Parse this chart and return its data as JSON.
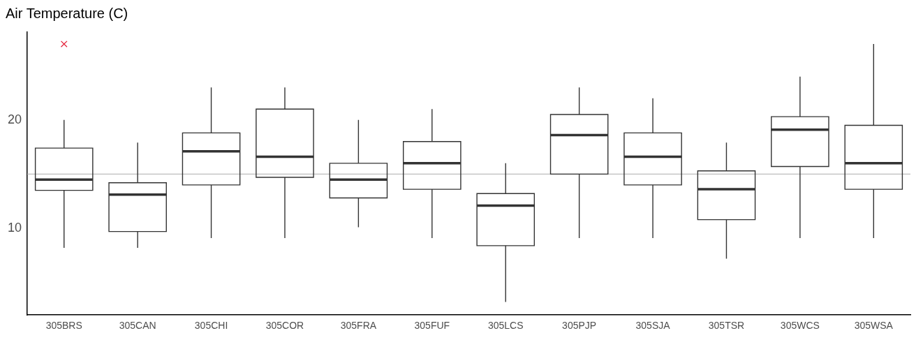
{
  "chart_data": {
    "type": "box",
    "title": "Air Temperature (C)",
    "categories": [
      "305BRS",
      "305CAN",
      "305CHI",
      "305COR",
      "305FRA",
      "305FUF",
      "305LCS",
      "305PJP",
      "305SJA",
      "305TSR",
      "305WCS",
      "305WSA"
    ],
    "series": [
      {
        "color": "#333333",
        "boxes": [
          {
            "low": 8.2,
            "q1": 13.5,
            "median": 14.5,
            "q3": 17.4,
            "high": 20
          },
          {
            "low": 8.2,
            "q1": 9.7,
            "median": 13.1,
            "q3": 14.2,
            "high": 17.9
          },
          {
            "low": 9.1,
            "q1": 14,
            "median": 17.1,
            "q3": 18.8,
            "high": 23
          },
          {
            "low": 9.1,
            "q1": 14.7,
            "median": 16.6,
            "q3": 21,
            "high": 23
          },
          {
            "low": 10.1,
            "q1": 12.8,
            "median": 14.5,
            "q3": 16,
            "high": 20
          },
          {
            "low": 9.1,
            "q1": 13.6,
            "median": 16,
            "q3": 18,
            "high": 21
          },
          {
            "low": 3.2,
            "q1": 8.4,
            "median": 12.1,
            "q3": 13.2,
            "high": 16
          },
          {
            "low": 9.1,
            "q1": 15,
            "median": 18.6,
            "q3": 20.5,
            "high": 23
          },
          {
            "low": 9.1,
            "q1": 14,
            "median": 16.6,
            "q3": 18.8,
            "high": 22
          },
          {
            "low": 7.2,
            "q1": 10.8,
            "median": 13.6,
            "q3": 15.3,
            "high": 17.9
          },
          {
            "low": 9.1,
            "q1": 15.7,
            "median": 19.1,
            "q3": 20.3,
            "high": 24
          },
          {
            "low": 9.1,
            "q1": 13.6,
            "median": 16,
            "q3": 19.5,
            "high": 27
          }
        ]
      },
      {
        "type": "scatter",
        "x": [
          "305BRS"
        ],
        "values": [
          27
        ],
        "color": "#e4233b"
      }
    ],
    "marker": "cross",
    "ylim": [
      2,
      28.1
    ],
    "yticks": [
      10,
      20
    ],
    "grid": false,
    "legend": false,
    "ref_lines": [
      {
        "axis": "y",
        "value": 15,
        "color": "#bdbdbd"
      }
    ]
  }
}
